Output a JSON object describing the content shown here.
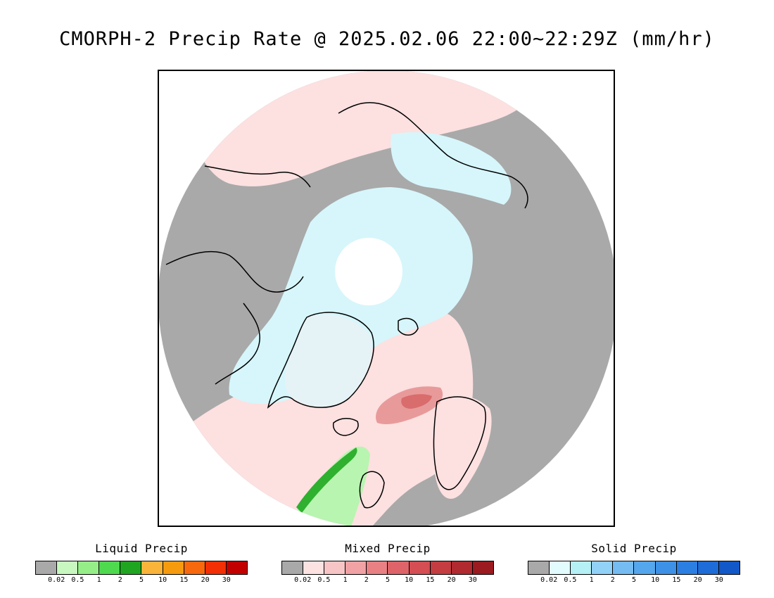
{
  "title": "CMORPH-2 Precip Rate @ 2025.02.06 22:00~22:29Z (mm/hr)",
  "map": {
    "projection": "north-polar-stereographic",
    "colors": {
      "no_precip": "#a9a9a9",
      "mixed_light": "#fde0e0",
      "mixed_moderate": "#e89a9a",
      "mixed_heavy": "#d96c6c",
      "snow_light": "#d6f6fb",
      "snow_core": "#ffffff",
      "rain_light": "#b8f5b0",
      "rain_moderate": "#2fb02f",
      "coastline": "#000000"
    }
  },
  "legends": [
    {
      "title": "Liquid Precip",
      "colors": [
        "#a9a9a9",
        "#c8f8c0",
        "#96ee88",
        "#4ed94e",
        "#1fa51f",
        "#fbb43a",
        "#f79b0e",
        "#f7690c",
        "#f22f05",
        "#c20000"
      ],
      "ticks": [
        "0.02",
        "0.5",
        "1",
        "2",
        "5",
        "10",
        "15",
        "20",
        "30"
      ]
    },
    {
      "title": "Mixed Precip",
      "colors": [
        "#a9a9a9",
        "#fde2e2",
        "#f8c5c6",
        "#f1a2a4",
        "#e98184",
        "#de6469",
        "#d44e53",
        "#c53c41",
        "#b12a2f",
        "#9b1b20"
      ],
      "ticks": [
        "0.02",
        "0.5",
        "1",
        "2",
        "5",
        "10",
        "15",
        "20",
        "30"
      ]
    },
    {
      "title": "Solid Precip",
      "colors": [
        "#a9a9a9",
        "#e2fcfd",
        "#b5f0f7",
        "#92d2f8",
        "#74bcf2",
        "#55a7ed",
        "#3d92e8",
        "#2b7fe2",
        "#1e6cd8",
        "#1258c8"
      ],
      "ticks": [
        "0.02",
        "0.5",
        "1",
        "2",
        "5",
        "10",
        "15",
        "20",
        "30"
      ]
    }
  ]
}
